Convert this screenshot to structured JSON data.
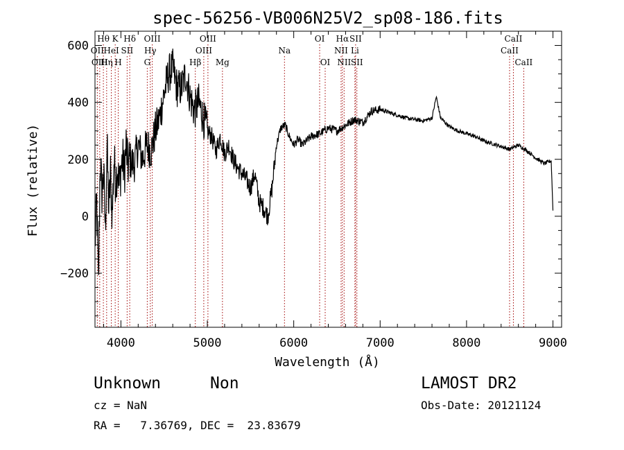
{
  "chart_data": {
    "type": "line",
    "title": "spec-56256-VB006N25V2_sp08-186.fits",
    "xlabel": "Wavelength (Å)",
    "ylabel": "Flux (relative)",
    "xlim": [
      3700,
      9100
    ],
    "ylim": [
      -390,
      650
    ],
    "xticks": [
      4000,
      5000,
      6000,
      7000,
      8000,
      9000
    ],
    "yticks": [
      -200,
      0,
      200,
      400,
      600
    ],
    "xtick_labels": [
      "4000",
      "5000",
      "6000",
      "7000",
      "8000",
      "9000"
    ],
    "ytick_labels": [
      "−200",
      "0",
      "200",
      "400",
      "600"
    ],
    "grid": false,
    "series": [
      {
        "x": [
          3700,
          3720,
          3740,
          3760,
          3780,
          3800,
          3820,
          3840,
          3860,
          3880,
          3900,
          3920,
          3940,
          3960,
          3980,
          4000,
          4020,
          4040,
          4060,
          4080,
          4100,
          4150,
          4200,
          4250,
          4300,
          4350,
          4400,
          4450,
          4500,
          4550,
          4600,
          4650,
          4700,
          4750,
          4800,
          4850,
          4900,
          4950,
          5000,
          5050,
          5100,
          5150,
          5200,
          5250,
          5300,
          5350,
          5400,
          5450,
          5500,
          5550,
          5600,
          5650,
          5700,
          5750,
          5800,
          5850,
          5900,
          5950,
          6000,
          6050,
          6100,
          6200,
          6300,
          6400,
          6500,
          6600,
          6700,
          6800,
          6900,
          7000,
          7100,
          7200,
          7300,
          7400,
          7500,
          7600,
          7650,
          7700,
          7800,
          7900,
          8000,
          8100,
          8200,
          8300,
          8400,
          8500,
          8600,
          8700,
          8800,
          8900,
          8980,
          9000
        ],
        "y": [
          -100,
          50,
          -250,
          200,
          80,
          150,
          -50,
          250,
          20,
          150,
          0,
          200,
          120,
          180,
          100,
          170,
          200,
          150,
          250,
          170,
          200,
          180,
          250,
          200,
          250,
          230,
          300,
          350,
          430,
          500,
          520,
          450,
          450,
          500,
          420,
          370,
          400,
          350,
          300,
          280,
          230,
          280,
          220,
          250,
          200,
          170,
          150,
          130,
          100,
          150,
          50,
          30,
          0,
          100,
          250,
          310,
          320,
          280,
          250,
          270,
          250,
          280,
          290,
          310,
          300,
          320,
          340,
          330,
          370,
          375,
          365,
          355,
          345,
          340,
          335,
          345,
          420,
          345,
          315,
          300,
          290,
          280,
          265,
          255,
          245,
          235,
          250,
          230,
          205,
          185,
          195,
          20
        ]
      }
    ],
    "spectral_lines": [
      {
        "label": "Hθ",
        "x": 3797,
        "row": 0
      },
      {
        "label": "K",
        "x": 3934,
        "row": 0
      },
      {
        "label": "Hδ",
        "x": 4102,
        "row": 0
      },
      {
        "label": "OIII",
        "x": 4363,
        "row": 0
      },
      {
        "label": "OIII",
        "x": 5007,
        "row": 0
      },
      {
        "label": "OI",
        "x": 6300,
        "row": 0
      },
      {
        "label": "Hα",
        "x": 6563,
        "row": 0
      },
      {
        "label": "SII",
        "x": 6716,
        "row": 0
      },
      {
        "label": "CaII",
        "x": 8542,
        "row": 0
      },
      {
        "label": "OII",
        "x": 3727,
        "row": 1
      },
      {
        "label": "HeI",
        "x": 3889,
        "row": 1
      },
      {
        "label": "SII",
        "x": 4072,
        "row": 1
      },
      {
        "label": "Hγ",
        "x": 4340,
        "row": 1
      },
      {
        "label": "OIII",
        "x": 4959,
        "row": 1
      },
      {
        "label": "Na",
        "x": 5893,
        "row": 1
      },
      {
        "label": "NII",
        "x": 6548,
        "row": 1
      },
      {
        "label": "Li",
        "x": 6708,
        "row": 1
      },
      {
        "label": "CaII",
        "x": 8498,
        "row": 1
      },
      {
        "label": "OIII",
        "x": 3755,
        "row": 2
      },
      {
        "label": "Hη",
        "x": 3835,
        "row": 2
      },
      {
        "label": "H",
        "x": 3969,
        "row": 2
      },
      {
        "label": "G",
        "x": 4305,
        "row": 2
      },
      {
        "label": "Hβ",
        "x": 4861,
        "row": 2
      },
      {
        "label": "Mg",
        "x": 5175,
        "row": 2
      },
      {
        "label": "OI",
        "x": 6364,
        "row": 2
      },
      {
        "label": "NII",
        "x": 6583,
        "row": 2
      },
      {
        "label": "SII",
        "x": 6731,
        "row": 2
      },
      {
        "label": "CaII",
        "x": 8662,
        "row": 2
      }
    ]
  },
  "info": {
    "class_name": "Unknown",
    "subclass": "Non",
    "survey": "LAMOST DR2",
    "cz": "cz = NaN",
    "obs_date": "Obs-Date: 20121124",
    "coords": "RA =   7.36769, DEC =  23.83679"
  }
}
